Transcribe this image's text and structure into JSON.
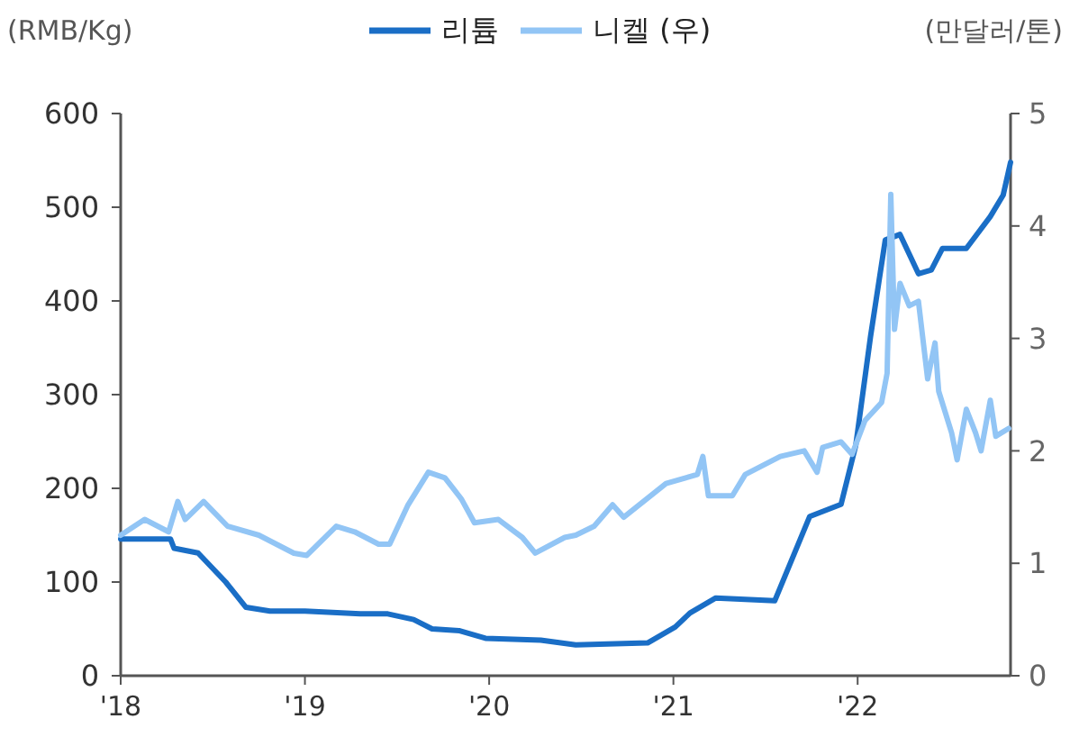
{
  "chart_data": {
    "type": "line",
    "ylabel": "(RMB/Kg)",
    "y2label": "(만달러/톤)",
    "legend": "top",
    "grid": false,
    "xlim": [
      2018,
      2022.83
    ],
    "xticks": [
      {
        "value": 2018,
        "label": "'18"
      },
      {
        "value": 2019,
        "label": "'19"
      },
      {
        "value": 2020,
        "label": "'20"
      },
      {
        "value": 2021,
        "label": "'21"
      },
      {
        "value": 2022,
        "label": "'22"
      }
    ],
    "ylim": [
      0,
      600
    ],
    "yticks": [
      0,
      100,
      200,
      300,
      400,
      500,
      600
    ],
    "y2lim": [
      0,
      5
    ],
    "y2ticks": [
      0,
      1,
      2,
      3,
      4,
      5
    ],
    "series": [
      {
        "name": "리튬",
        "color": "#1a6ec6",
        "x": [
          2018.0,
          2018.27,
          2018.29,
          2018.42,
          2018.57,
          2018.68,
          2018.81,
          2019.0,
          2019.2,
          2019.3,
          2019.45,
          2019.59,
          2019.69,
          2019.84,
          2019.98,
          2020.28,
          2020.47,
          2020.86,
          2021.01,
          2021.09,
          2021.23,
          2021.55,
          2021.74,
          2021.91,
          2021.99,
          2022.07,
          2022.15,
          2022.23,
          2022.33,
          2022.4,
          2022.46,
          2022.59,
          2022.72,
          2022.79,
          2022.83
        ],
        "values": [
          146,
          146,
          136,
          131,
          100,
          73,
          69,
          69,
          67,
          66,
          66,
          60,
          50,
          48,
          40,
          38,
          33,
          35,
          52,
          67,
          83,
          80,
          170,
          183,
          246,
          362,
          465,
          471,
          429,
          433,
          456,
          456,
          490,
          513,
          548
        ]
      },
      {
        "name": "니켈 (우)",
        "color": "#92c5f5",
        "axis": "y2",
        "x": [
          2018.0,
          2018.13,
          2018.26,
          2018.31,
          2018.35,
          2018.45,
          2018.58,
          2018.75,
          2018.94,
          2019.01,
          2019.17,
          2019.27,
          2019.4,
          2019.46,
          2019.56,
          2019.67,
          2019.76,
          2019.85,
          2019.92,
          2020.05,
          2020.18,
          2020.25,
          2020.41,
          2020.47,
          2020.57,
          2020.67,
          2020.73,
          2020.96,
          2021.13,
          2021.16,
          2021.19,
          2021.32,
          2021.39,
          2021.58,
          2021.71,
          2021.78,
          2021.81,
          2021.91,
          2021.97,
          2022.04,
          2022.13,
          2022.16,
          2022.18,
          2022.2,
          2022.23,
          2022.28,
          2022.33,
          2022.38,
          2022.42,
          2022.44,
          2022.51,
          2022.54,
          2022.59,
          2022.64,
          2022.67,
          2022.72,
          2022.75,
          2022.82
        ],
        "values": [
          1.25,
          1.39,
          1.28,
          1.55,
          1.39,
          1.55,
          1.33,
          1.25,
          1.09,
          1.07,
          1.33,
          1.28,
          1.17,
          1.17,
          1.52,
          1.81,
          1.76,
          1.57,
          1.36,
          1.39,
          1.23,
          1.09,
          1.23,
          1.25,
          1.33,
          1.52,
          1.41,
          1.71,
          1.79,
          1.95,
          1.6,
          1.6,
          1.79,
          1.95,
          2.0,
          1.81,
          2.03,
          2.08,
          1.97,
          2.27,
          2.43,
          2.69,
          4.28,
          3.08,
          3.49,
          3.29,
          3.33,
          2.64,
          2.96,
          2.53,
          2.16,
          1.92,
          2.37,
          2.16,
          2.0,
          2.45,
          2.13,
          2.2
        ]
      }
    ]
  }
}
